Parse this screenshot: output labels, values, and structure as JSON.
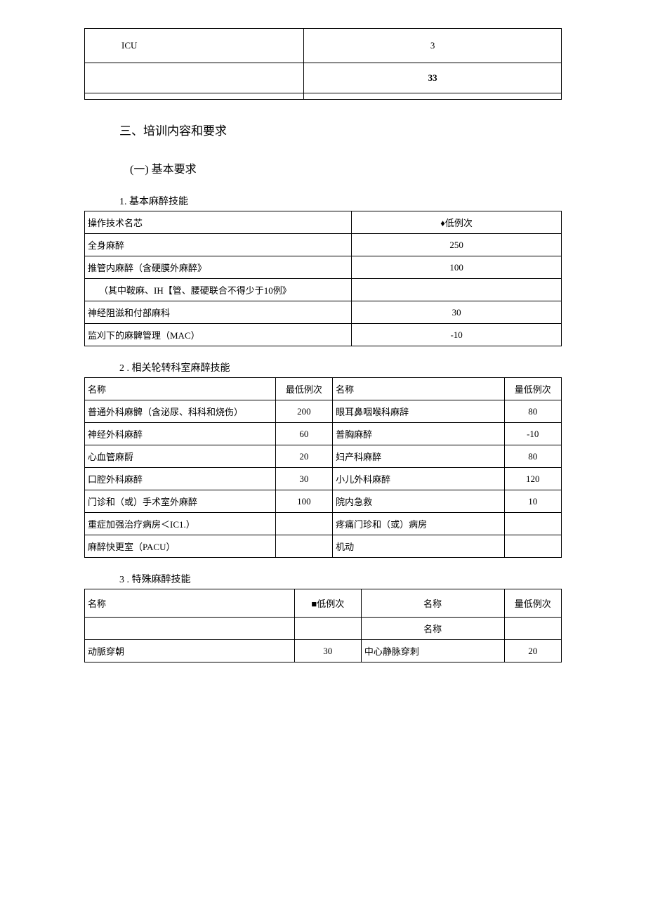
{
  "table0": {
    "rows": [
      [
        "ICU",
        "3"
      ],
      [
        "",
        "33"
      ],
      [
        "",
        ""
      ]
    ]
  },
  "heading_section": "三、培训内容和要求",
  "heading_sub": "(一)  基本要求",
  "heading_item1": "1. 基本麻醉技能",
  "table1": {
    "header": [
      "操作技术名芯",
      "♦低例次"
    ],
    "rows": [
      [
        "全身麻醉",
        "250"
      ],
      [
        "推管内麻醉（含硬膜外麻醉》",
        "100"
      ],
      [
        "（其中鞍麻、IH【管、腰硬联合不得少于10例》",
        ""
      ],
      [
        "神经阻滋和付部麻科",
        "30"
      ],
      [
        "监刈下的麻髀管理（MAC）",
        "-10"
      ]
    ]
  },
  "heading_item2": "2 . 相关轮转科室麻醉技能",
  "table2": {
    "header": [
      "名称",
      "最低例次",
      "名称",
      "量低例次"
    ],
    "rows": [
      [
        "普通外科麻髀（含泌尿、科科和烧伤）",
        "200",
        "眼耳鼻咽喉科麻辞",
        "80"
      ],
      [
        "神经外科麻醉",
        "60",
        "普胸麻醉",
        "-10"
      ],
      [
        "心血管麻酹",
        "20",
        "妇产科麻醉",
        "80"
      ],
      [
        "口腔外科麻醉",
        "30",
        "小儿外科麻醉",
        "120"
      ],
      [
        "门诊和（或）手术室外麻醉",
        "100",
        "院内急救",
        "10"
      ],
      [
        "重症加强治疗病房＜IC1.）",
        "",
        "疼痛门珍和（或）病房",
        ""
      ],
      [
        "麻醉快更室（PACU）",
        "",
        "机动",
        ""
      ]
    ]
  },
  "heading_item3": "3 . 特殊麻醉技能",
  "table3": {
    "header": [
      "名称",
      "■低例次",
      "名称",
      "量低例次"
    ],
    "subheader": [
      "",
      "",
      "名称",
      ""
    ],
    "rows": [
      [
        "动脈穿朝",
        "30",
        "中心静脉穿刺",
        "20"
      ]
    ]
  }
}
